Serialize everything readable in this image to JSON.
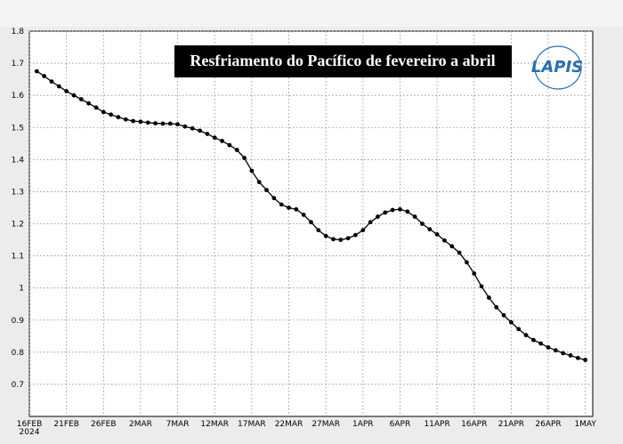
{
  "chart_data": {
    "type": "line",
    "title": "Resfriamento do Pacífico de fevereiro a abril",
    "logo": "LAPIS",
    "x_year_label": "2024",
    "x": [
      1,
      2,
      3,
      4,
      5,
      6,
      7,
      8,
      9,
      10,
      11,
      12,
      13,
      14,
      15,
      16,
      17,
      18,
      19,
      20,
      21,
      22,
      23,
      24,
      25,
      26,
      27,
      28,
      29,
      30,
      31,
      32,
      33,
      34,
      35,
      36,
      37,
      38,
      39,
      40,
      41,
      42,
      43,
      44,
      45,
      46,
      47,
      48,
      49,
      50,
      51,
      52,
      53,
      54,
      55,
      56,
      57,
      58,
      59,
      60,
      61,
      62,
      63,
      64,
      65,
      66,
      67,
      68,
      69,
      70,
      71,
      72,
      73,
      74,
      75
    ],
    "series": [
      {
        "color": "#000000",
        "values": [
          1.675,
          1.66,
          1.643,
          1.628,
          1.613,
          1.6,
          1.588,
          1.575,
          1.562,
          1.548,
          1.54,
          1.532,
          1.525,
          1.52,
          1.518,
          1.515,
          1.513,
          1.512,
          1.512,
          1.51,
          1.503,
          1.497,
          1.49,
          1.48,
          1.468,
          1.458,
          1.445,
          1.43,
          1.405,
          1.365,
          1.33,
          1.305,
          1.28,
          1.26,
          1.25,
          1.245,
          1.228,
          1.205,
          1.18,
          1.162,
          1.152,
          1.15,
          1.155,
          1.165,
          1.18,
          1.205,
          1.222,
          1.235,
          1.243,
          1.245,
          1.238,
          1.222,
          1.2,
          1.183,
          1.167,
          1.148,
          1.13,
          1.11,
          1.08,
          1.045,
          1.005,
          0.97,
          0.94,
          0.915,
          0.893,
          0.872,
          0.853,
          0.838,
          0.827,
          0.815,
          0.806,
          0.797,
          0.79,
          0.782,
          0.776
        ]
      }
    ],
    "xlim": [
      0,
      76
    ],
    "xticks": [
      {
        "value": 0,
        "label": "16FEB"
      },
      {
        "value": 5,
        "label": "21FEB"
      },
      {
        "value": 10,
        "label": "26FEB"
      },
      {
        "value": 15,
        "label": "2MAR"
      },
      {
        "value": 20,
        "label": "7MAR"
      },
      {
        "value": 25,
        "label": "12MAR"
      },
      {
        "value": 30,
        "label": "17MAR"
      },
      {
        "value": 35,
        "label": "22MAR"
      },
      {
        "value": 40,
        "label": "27MAR"
      },
      {
        "value": 45,
        "label": "1APR"
      },
      {
        "value": 50,
        "label": "6APR"
      },
      {
        "value": 55,
        "label": "11APR"
      },
      {
        "value": 60,
        "label": "16APR"
      },
      {
        "value": 65,
        "label": "21APR"
      },
      {
        "value": 70,
        "label": "26APR"
      },
      {
        "value": 75,
        "label": "1MAY"
      }
    ],
    "ylim": [
      0.6,
      1.8
    ],
    "yticks": [
      0.7,
      0.8,
      0.9,
      1,
      1.1,
      1.2,
      1.3,
      1.4,
      1.5,
      1.6,
      1.7,
      1.8
    ],
    "grid": true
  }
}
